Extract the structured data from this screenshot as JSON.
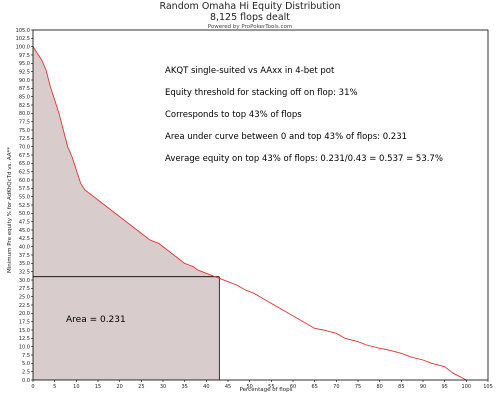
{
  "header": {
    "title": "Random Omaha Hi Equity Distribution",
    "subtitle": "8,125 flops dealt",
    "credit": "Powered by ProPokerTools.com"
  },
  "annotations": {
    "line1": "AKQT single-suited vs AAxx in 4-bet pot",
    "line2": "Equity threshold for stacking off on flop: 31%",
    "line3": "Corresponds to top 43% of flops",
    "line4": "Area under curve between 0 and top 43% of flops: 0.231",
    "line5": "Average equity on top 43% of flops: 0.231/0.43 = 0.537 = 53.7%",
    "area_label": "Area = 0.231"
  },
  "chart_data": {
    "type": "area",
    "title": "Random Omaha Hi Equity Distribution",
    "subtitle": "8,125 flops dealt",
    "xlabel": "Percentage of flops",
    "ylabel": "Minimum Pre equity % for AdKhQcTd vs. AA**",
    "xlim": [
      0,
      105
    ],
    "ylim": [
      0,
      105
    ],
    "x_ticks": [
      0,
      5,
      10,
      15,
      20,
      25,
      30,
      35,
      40,
      45,
      50,
      55,
      60,
      65,
      70,
      75,
      80,
      85,
      90,
      95,
      100,
      105
    ],
    "y_ticks": [
      0,
      2.5,
      5,
      7.5,
      10,
      12.5,
      15,
      17.5,
      20,
      22.5,
      25,
      27.5,
      30,
      32.5,
      35,
      37.5,
      40,
      42.5,
      45,
      47.5,
      50,
      52.5,
      55,
      57.5,
      60,
      62.5,
      65,
      67.5,
      70,
      72.5,
      75,
      77.5,
      80,
      82.5,
      85,
      87.5,
      90,
      92.5,
      95,
      97.5,
      100,
      102.5,
      105
    ],
    "grid": false,
    "series": [
      {
        "name": "",
        "color": "#e8312f",
        "x": [
          0,
          1,
          2,
          3,
          4,
          5,
          6,
          7,
          8,
          9,
          10,
          11,
          12,
          13,
          14,
          15,
          16,
          17,
          18,
          19,
          20,
          21,
          22,
          23,
          24,
          25,
          26,
          27,
          28,
          29,
          30,
          31,
          32,
          33,
          34,
          35,
          36,
          37,
          38,
          39,
          40,
          41,
          42,
          43,
          45,
          47,
          49,
          51,
          53,
          55,
          57,
          59,
          61,
          63,
          65,
          67,
          70,
          72,
          75,
          77,
          80,
          82,
          85,
          87,
          90,
          92,
          95,
          97,
          100
        ],
        "values": [
          100,
          98,
          96,
          93,
          88,
          84,
          80,
          75,
          70,
          67,
          63,
          59,
          57,
          56,
          55,
          54,
          53,
          52,
          51,
          50,
          49,
          48,
          47,
          46,
          45,
          44,
          43,
          42,
          41.5,
          41,
          40,
          39,
          38,
          37,
          36,
          35,
          34.5,
          34,
          33,
          32.5,
          32,
          31.5,
          31,
          30.5,
          29.5,
          28.5,
          27,
          26,
          24.5,
          23,
          21.5,
          20,
          18.5,
          17,
          15.5,
          15,
          14,
          12.5,
          11.5,
          10.5,
          9.5,
          9,
          8,
          7,
          6,
          5,
          4,
          2,
          0
        ]
      }
    ],
    "shaded_region": {
      "x_from": 0,
      "x_to": 43,
      "threshold_y": 31,
      "color": "#d8cccc"
    }
  }
}
